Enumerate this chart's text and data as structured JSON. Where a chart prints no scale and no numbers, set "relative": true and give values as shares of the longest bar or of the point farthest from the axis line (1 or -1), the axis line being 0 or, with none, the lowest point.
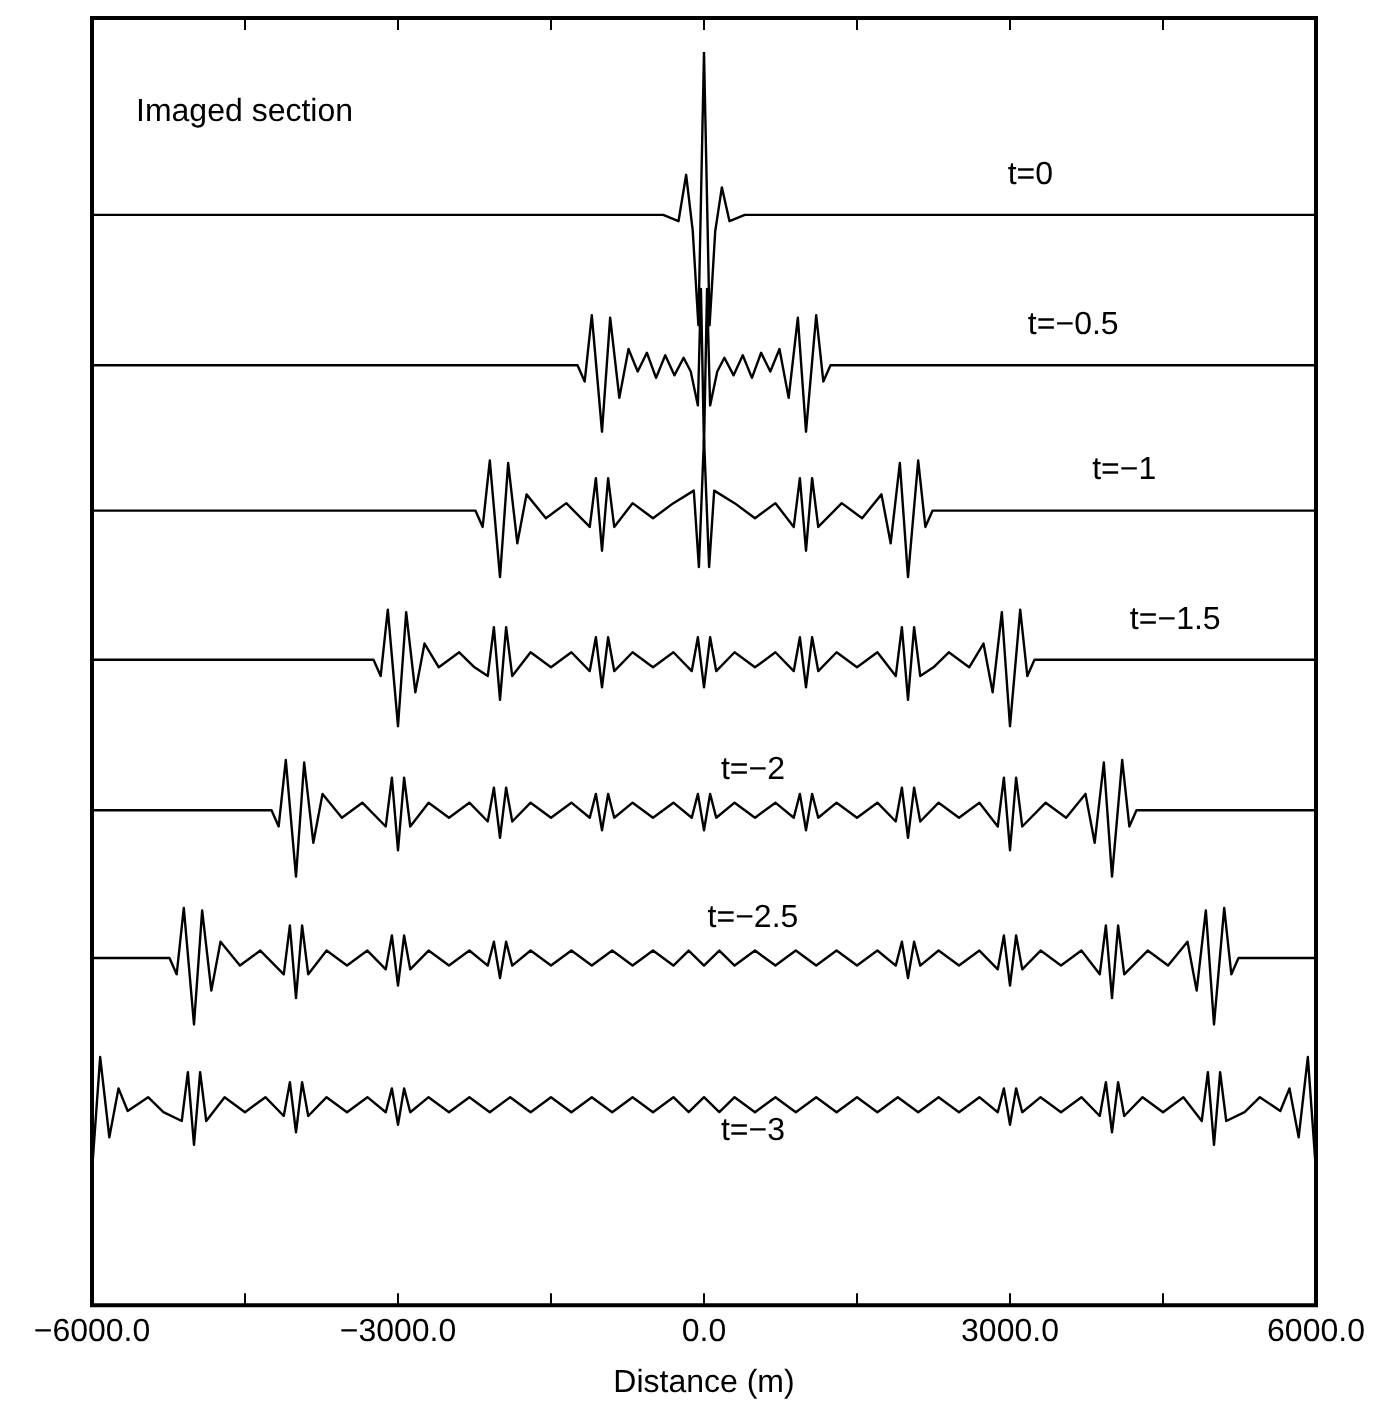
{
  "chart_data": {
    "type": "line",
    "relative": true,
    "xlabel": "Distance (m)",
    "xlim": [
      -6000,
      6000
    ],
    "xticks": [
      {
        "value": -6000,
        "label": "−6000.0"
      },
      {
        "value": -4500,
        "label": null
      },
      {
        "value": -3000,
        "label": "−3000.0"
      },
      {
        "value": -1500,
        "label": null
      },
      {
        "value": 0,
        "label": "0.0"
      },
      {
        "value": 1500,
        "label": null
      },
      {
        "value": 3000,
        "label": "3000.0"
      },
      {
        "value": 4500,
        "label": null
      },
      {
        "value": 6000,
        "label": "6000.0"
      }
    ],
    "annotations": [
      "Imaged section"
    ],
    "series": [
      {
        "name": "t=0",
        "color": "#000000",
        "x": [
          -6000,
          -400,
          -250,
          -175,
          -110,
          -55,
          0,
          55,
          110,
          175,
          250,
          400,
          6000
        ],
        "values": [
          0.87,
          0.87,
          0.865,
          0.902,
          0.857,
          0.782,
          1,
          0.782,
          0.857,
          0.892,
          0.865,
          0.87,
          0.87
        ]
      },
      {
        "name": "t=−0.5",
        "color": "#000000",
        "x": [
          -6000,
          -1240,
          -1170,
          -1100,
          -1000,
          -920,
          -830,
          -740,
          -650,
          -560,
          -470,
          -380,
          -290,
          -200,
          -130,
          -60,
          -30,
          0,
          30,
          60,
          130,
          200,
          290,
          380,
          470,
          560,
          650,
          740,
          830,
          920,
          1000,
          1100,
          1170,
          1240,
          6000
        ],
        "values": [
          0.75,
          0.75,
          0.737,
          0.79,
          0.697,
          0.788,
          0.724,
          0.763,
          0.745,
          0.76,
          0.74,
          0.758,
          0.742,
          0.756,
          0.745,
          0.718,
          0.811,
          0.686,
          0.811,
          0.718,
          0.745,
          0.756,
          0.742,
          0.758,
          0.74,
          0.76,
          0.745,
          0.763,
          0.724,
          0.788,
          0.697,
          0.79,
          0.737,
          0.75,
          0.75
        ]
      },
      {
        "name": "t=−1",
        "color": "#000000",
        "x": [
          -6000,
          -2240,
          -2170,
          -2100,
          -2000,
          -1920,
          -1830,
          -1740,
          -1550,
          -1350,
          -1120,
          -1060,
          -1000,
          -940,
          -880,
          -700,
          -500,
          -300,
          -100,
          -50,
          0,
          50,
          100,
          300,
          500,
          700,
          880,
          940,
          1000,
          1060,
          1120,
          1350,
          1550,
          1740,
          1830,
          1920,
          2000,
          2100,
          2170,
          2240,
          6000
        ],
        "values": [
          0.634,
          0.634,
          0.621,
          0.674,
          0.581,
          0.672,
          0.608,
          0.647,
          0.628,
          0.64,
          0.621,
          0.66,
          0.602,
          0.66,
          0.621,
          0.64,
          0.628,
          0.64,
          0.65,
          0.589,
          0.692,
          0.589,
          0.65,
          0.64,
          0.628,
          0.64,
          0.621,
          0.66,
          0.602,
          0.66,
          0.621,
          0.64,
          0.628,
          0.647,
          0.608,
          0.672,
          0.581,
          0.674,
          0.621,
          0.634,
          0.634
        ]
      },
      {
        "name": "t=−1.5",
        "color": "#000000",
        "x": [
          -6000,
          -3240,
          -3170,
          -3100,
          -3000,
          -2920,
          -2830,
          -2740,
          -2600,
          -2400,
          -2250,
          -2120,
          -2060,
          -2000,
          -1940,
          -1880,
          -1700,
          -1500,
          -1300,
          -1120,
          -1060,
          -1000,
          -940,
          -880,
          -700,
          -500,
          -300,
          -120,
          -60,
          0,
          60,
          120,
          300,
          500,
          700,
          880,
          940,
          1000,
          1060,
          1120,
          1300,
          1500,
          1700,
          1880,
          1940,
          2000,
          2060,
          2120,
          2250,
          2400,
          2600,
          2740,
          2830,
          2920,
          3000,
          3100,
          3170,
          3240,
          6000
        ],
        "values": [
          0.515,
          0.515,
          0.502,
          0.555,
          0.462,
          0.553,
          0.489,
          0.528,
          0.509,
          0.521,
          0.509,
          0.502,
          0.541,
          0.483,
          0.541,
          0.502,
          0.521,
          0.509,
          0.521,
          0.506,
          0.533,
          0.493,
          0.533,
          0.506,
          0.521,
          0.509,
          0.521,
          0.506,
          0.533,
          0.493,
          0.533,
          0.506,
          0.521,
          0.509,
          0.521,
          0.506,
          0.533,
          0.493,
          0.533,
          0.506,
          0.521,
          0.509,
          0.521,
          0.502,
          0.541,
          0.483,
          0.541,
          0.502,
          0.509,
          0.521,
          0.509,
          0.528,
          0.489,
          0.553,
          0.462,
          0.555,
          0.502,
          0.515,
          0.515
        ]
      },
      {
        "name": "t=−2",
        "color": "#000000",
        "x": [
          -6000,
          -4240,
          -4170,
          -4100,
          -4000,
          -3920,
          -3830,
          -3740,
          -3550,
          -3350,
          -3120,
          -3060,
          -3000,
          -2940,
          -2880,
          -2700,
          -2500,
          -2300,
          -2120,
          -2060,
          -2000,
          -1940,
          -1880,
          -1700,
          -1500,
          -1300,
          -1120,
          -1060,
          -1000,
          -940,
          -880,
          -700,
          -500,
          -300,
          -120,
          -60,
          0,
          60,
          120,
          300,
          500,
          700,
          880,
          940,
          1000,
          1060,
          1120,
          1300,
          1500,
          1700,
          1880,
          1940,
          2000,
          2060,
          2120,
          2300,
          2500,
          2700,
          2880,
          2940,
          3000,
          3060,
          3120,
          3350,
          3550,
          3740,
          3830,
          3920,
          4000,
          4100,
          4170,
          4240,
          6000
        ],
        "values": [
          0.395,
          0.395,
          0.382,
          0.435,
          0.342,
          0.433,
          0.369,
          0.408,
          0.389,
          0.401,
          0.382,
          0.421,
          0.363,
          0.421,
          0.382,
          0.401,
          0.389,
          0.401,
          0.386,
          0.413,
          0.373,
          0.413,
          0.386,
          0.401,
          0.389,
          0.401,
          0.389,
          0.408,
          0.379,
          0.408,
          0.389,
          0.401,
          0.389,
          0.401,
          0.389,
          0.408,
          0.379,
          0.408,
          0.389,
          0.401,
          0.389,
          0.401,
          0.389,
          0.408,
          0.379,
          0.408,
          0.389,
          0.401,
          0.389,
          0.401,
          0.386,
          0.413,
          0.373,
          0.413,
          0.386,
          0.401,
          0.389,
          0.401,
          0.382,
          0.421,
          0.363,
          0.421,
          0.382,
          0.401,
          0.389,
          0.408,
          0.369,
          0.433,
          0.342,
          0.435,
          0.382,
          0.395,
          0.395
        ]
      },
      {
        "name": "t=−2.5",
        "color": "#000000",
        "x": [
          -6000,
          -5240,
          -5170,
          -5100,
          -5000,
          -4920,
          -4830,
          -4740,
          -4550,
          -4350,
          -4120,
          -4060,
          -4000,
          -3940,
          -3880,
          -3700,
          -3500,
          -3300,
          -3120,
          -3060,
          -3000,
          -2940,
          -2880,
          -2700,
          -2500,
          -2300,
          -2120,
          -2060,
          -2000,
          -1940,
          -1880,
          -1700,
          -1500,
          -1300,
          -1100,
          -900,
          -700,
          -500,
          -300,
          -150,
          0,
          150,
          300,
          500,
          700,
          900,
          1100,
          1300,
          1500,
          1700,
          1880,
          1940,
          2000,
          2060,
          2120,
          2300,
          2500,
          2700,
          2880,
          2940,
          3000,
          3060,
          3120,
          3300,
          3500,
          3700,
          3880,
          3940,
          4000,
          4060,
          4120,
          4350,
          4550,
          4740,
          4830,
          4920,
          5000,
          5100,
          5170,
          5240,
          6000
        ],
        "values": [
          0.277,
          0.277,
          0.264,
          0.317,
          0.224,
          0.315,
          0.251,
          0.29,
          0.271,
          0.283,
          0.264,
          0.303,
          0.245,
          0.303,
          0.264,
          0.283,
          0.271,
          0.283,
          0.268,
          0.295,
          0.255,
          0.295,
          0.268,
          0.283,
          0.271,
          0.283,
          0.271,
          0.29,
          0.261,
          0.29,
          0.271,
          0.283,
          0.271,
          0.283,
          0.271,
          0.283,
          0.271,
          0.283,
          0.271,
          0.283,
          0.271,
          0.283,
          0.271,
          0.283,
          0.271,
          0.283,
          0.271,
          0.283,
          0.271,
          0.283,
          0.271,
          0.29,
          0.261,
          0.29,
          0.271,
          0.283,
          0.271,
          0.283,
          0.268,
          0.295,
          0.255,
          0.295,
          0.268,
          0.283,
          0.271,
          0.283,
          0.264,
          0.303,
          0.245,
          0.303,
          0.264,
          0.283,
          0.271,
          0.29,
          0.251,
          0.315,
          0.224,
          0.317,
          0.264,
          0.277,
          0.277
        ]
      },
      {
        "name": "t=−3",
        "color": "#000000",
        "x": [
          -6000,
          -5920,
          -5830,
          -5740,
          -5650,
          -5450,
          -5300,
          -5120,
          -5060,
          -5000,
          -4940,
          -4880,
          -4700,
          -4500,
          -4300,
          -4120,
          -4060,
          -4000,
          -3940,
          -3880,
          -3700,
          -3500,
          -3300,
          -3120,
          -3060,
          -3000,
          -2940,
          -2880,
          -2700,
          -2500,
          -2300,
          -2100,
          -1900,
          -1700,
          -1500,
          -1300,
          -1100,
          -900,
          -700,
          -500,
          -300,
          -150,
          0,
          150,
          300,
          500,
          700,
          900,
          1100,
          1300,
          1500,
          1700,
          1900,
          2100,
          2300,
          2500,
          2700,
          2880,
          2940,
          3000,
          3060,
          3120,
          3300,
          3500,
          3700,
          3880,
          3940,
          4000,
          4060,
          4120,
          4300,
          4500,
          4700,
          4880,
          4940,
          5000,
          5060,
          5120,
          5300,
          5450,
          5650,
          5740,
          5830,
          5920,
          6000
        ],
        "values": [
          0.107,
          0.198,
          0.134,
          0.173,
          0.155,
          0.166,
          0.154,
          0.147,
          0.186,
          0.128,
          0.186,
          0.147,
          0.166,
          0.154,
          0.166,
          0.151,
          0.178,
          0.138,
          0.178,
          0.151,
          0.166,
          0.154,
          0.166,
          0.154,
          0.173,
          0.144,
          0.173,
          0.154,
          0.166,
          0.154,
          0.166,
          0.154,
          0.166,
          0.154,
          0.166,
          0.154,
          0.166,
          0.154,
          0.166,
          0.154,
          0.166,
          0.154,
          0.166,
          0.154,
          0.166,
          0.154,
          0.166,
          0.154,
          0.166,
          0.154,
          0.166,
          0.154,
          0.166,
          0.154,
          0.166,
          0.154,
          0.166,
          0.154,
          0.173,
          0.144,
          0.173,
          0.154,
          0.166,
          0.154,
          0.166,
          0.151,
          0.178,
          0.138,
          0.178,
          0.151,
          0.166,
          0.154,
          0.166,
          0.147,
          0.186,
          0.128,
          0.186,
          0.147,
          0.154,
          0.166,
          0.155,
          0.173,
          0.134,
          0.198,
          0.107
        ]
      }
    ]
  }
}
